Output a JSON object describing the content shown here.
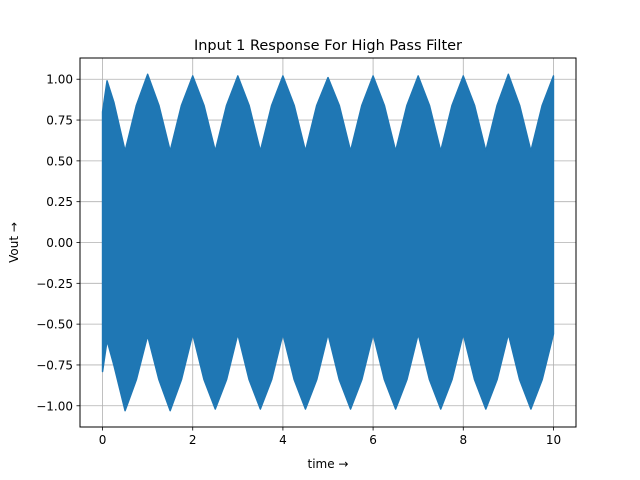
{
  "chart_data": {
    "type": "line",
    "title": "Input 1 Response For High Pass Filter",
    "xlabel": "time →",
    "ylabel": "Vout →",
    "xlim": [
      -0.5,
      10.5
    ],
    "ylim": [
      -1.13,
      1.13
    ],
    "xticks": [
      0,
      2,
      4,
      6,
      8,
      10
    ],
    "xtick_labels": [
      "0",
      "2",
      "4",
      "6",
      "8",
      "10"
    ],
    "yticks": [
      -1.0,
      -0.75,
      -0.5,
      -0.25,
      0.0,
      0.25,
      0.5,
      0.75,
      1.0
    ],
    "ytick_labels": [
      "−1.00",
      "−0.75",
      "−0.50",
      "−0.25",
      "0.00",
      "0.25",
      "0.50",
      "0.75",
      "1.00"
    ],
    "grid": true,
    "series": [
      {
        "color": "#1f77b4",
        "x_range": [
          0,
          10
        ],
        "envelope": {
          "t": [
            0,
            0.1,
            0.25,
            0.5,
            0.75,
            1.0,
            1.25,
            1.5,
            1.75,
            2.0,
            2.25,
            2.5,
            2.75,
            3.0,
            3.25,
            3.5,
            3.75,
            4.0,
            4.25,
            4.5,
            4.75,
            5.0,
            5.25,
            5.5,
            5.75,
            6.0,
            6.25,
            6.5,
            6.75,
            7.0,
            7.25,
            7.5,
            7.75,
            8.0,
            8.25,
            8.5,
            8.75,
            9.0,
            9.25,
            9.5,
            9.75,
            10.0
          ],
          "upper": [
            0.8,
            0.99,
            0.86,
            0.56,
            0.84,
            1.03,
            0.84,
            0.56,
            0.84,
            1.02,
            0.84,
            0.56,
            0.84,
            1.02,
            0.84,
            0.56,
            0.84,
            1.02,
            0.84,
            0.56,
            0.84,
            1.01,
            0.84,
            0.56,
            0.84,
            1.02,
            0.84,
            0.56,
            0.84,
            1.02,
            0.84,
            0.56,
            0.84,
            1.02,
            0.84,
            0.56,
            0.84,
            1.03,
            0.84,
            0.56,
            0.84,
            1.02
          ],
          "lower": [
            -0.79,
            -0.6,
            -0.75,
            -1.03,
            -0.84,
            -0.57,
            -0.84,
            -1.03,
            -0.84,
            -0.56,
            -0.84,
            -1.02,
            -0.84,
            -0.56,
            -0.84,
            -1.02,
            -0.84,
            -0.56,
            -0.84,
            -1.02,
            -0.84,
            -0.56,
            -0.84,
            -1.02,
            -0.84,
            -0.56,
            -0.84,
            -1.02,
            -0.84,
            -0.56,
            -0.84,
            -1.02,
            -0.84,
            -0.56,
            -0.84,
            -1.02,
            -0.84,
            -0.56,
            -0.84,
            -1.02,
            -0.84,
            -0.56
          ]
        }
      }
    ]
  }
}
